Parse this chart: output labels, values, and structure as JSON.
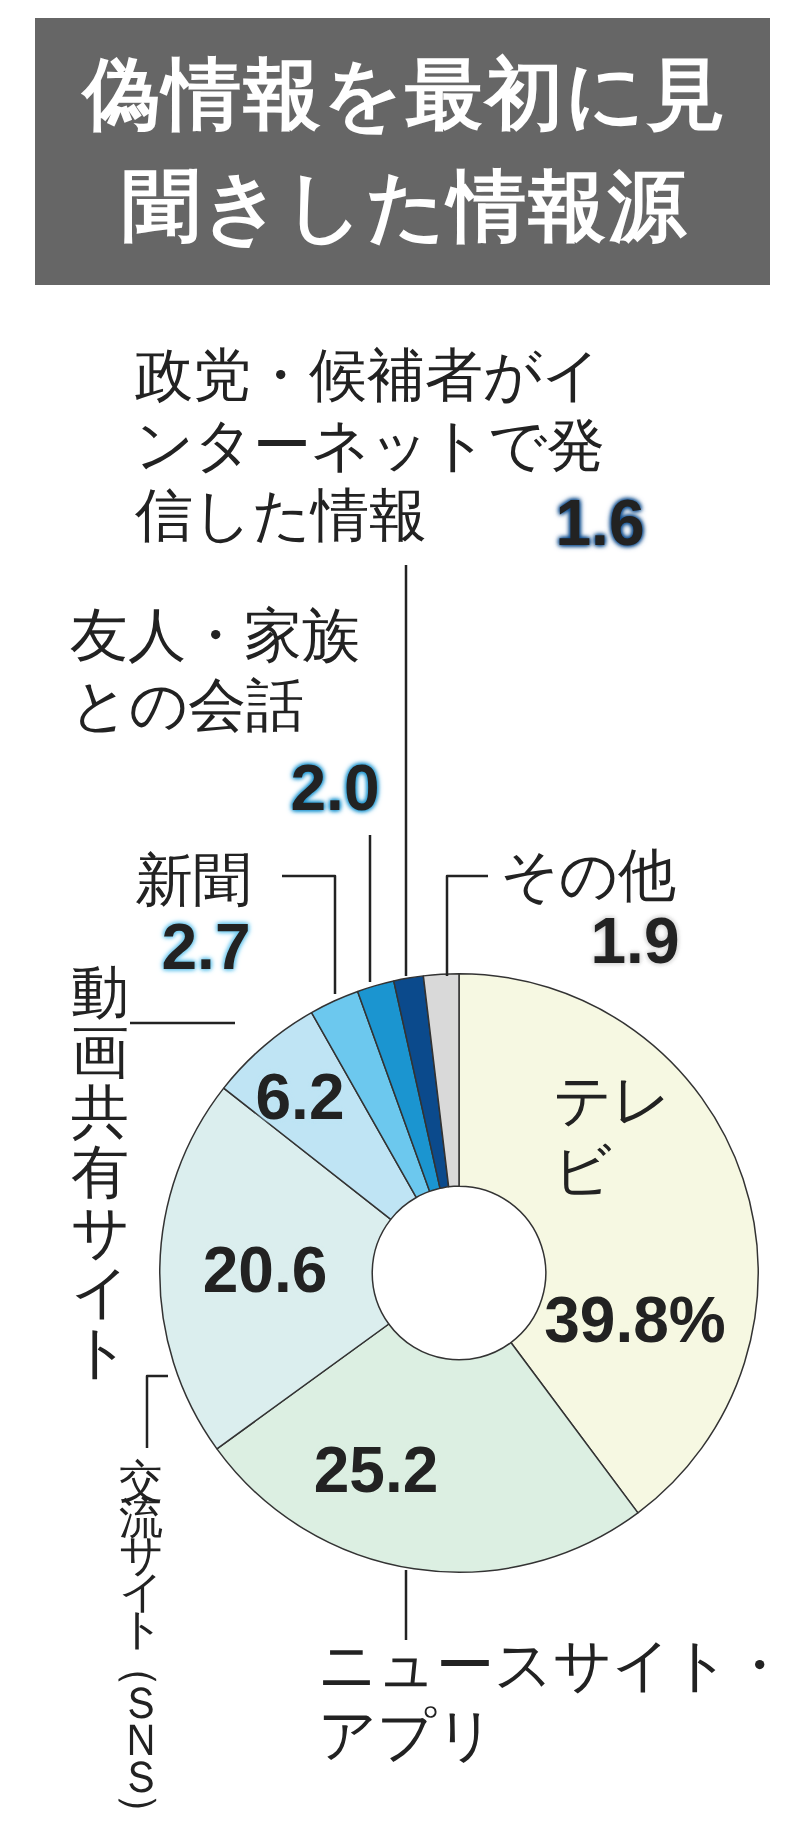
{
  "chart_data": {
    "type": "donut",
    "title": "偽情報を最初に見聞きした情報源",
    "categories": [
      "テレビ",
      "ニュースサイト・アプリ",
      "交流サイト（ＳＮＳ）",
      "動画共有サイト",
      "新聞",
      "友人・家族との会話",
      "政党・候補者がインターネットで発信した情報",
      "その他"
    ],
    "values": [
      39.8,
      25.2,
      20.6,
      6.2,
      2.7,
      2.0,
      1.6,
      1.9
    ],
    "colors": [
      "#f6f8e2",
      "#dcefe2",
      "#dbeeee",
      "#bfe4f4",
      "#6cc8ee",
      "#1b95d0",
      "#0b4a8c",
      "#d9d9d9"
    ],
    "value_labels": [
      "39.8%",
      "25.2",
      "20.6",
      "6.2",
      "2.7",
      "2.0",
      "1.6",
      "1.9"
    ]
  }
}
